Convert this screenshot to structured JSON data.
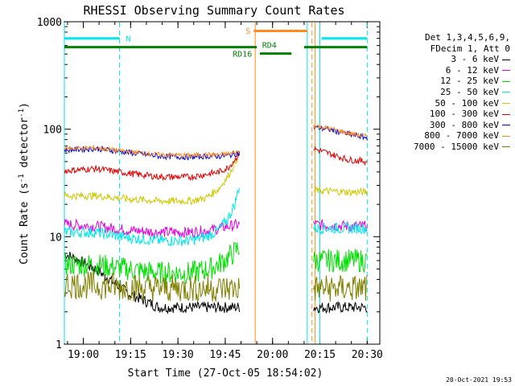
{
  "chart_data": {
    "type": "line",
    "title": "RHESSI Observing Summary Count Rates",
    "xlabel": "Start Time (27-Oct-05 18:54:02)",
    "ylabel": "Count Rate (s",
    "ylabel_sup": "-1",
    "ylabel_mid": " detector",
    "ylabel_sup2": "-1",
    "ylabel_end": ")",
    "x_unit": "minutes since 18:54:02",
    "xlim": [
      0,
      100
    ],
    "ylim": [
      1,
      1000
    ],
    "y_scale": "log",
    "x_ticks": [
      {
        "label": "19:00",
        "x": 6
      },
      {
        "label": "19:15",
        "x": 21
      },
      {
        "label": "19:30",
        "x": 36
      },
      {
        "label": "19:45",
        "x": 51
      },
      {
        "label": "20:00",
        "x": 66
      },
      {
        "label": "20:15",
        "x": 81
      },
      {
        "label": "20:30",
        "x": 96
      }
    ],
    "y_ticks": [
      {
        "label": "1",
        "y": 1
      },
      {
        "label": "10",
        "y": 10
      },
      {
        "label": "100",
        "y": 100
      },
      {
        "label": "1000",
        "y": 1000
      }
    ],
    "legend_header": [
      "Det 1,3,4,5,6,9,",
      "FDecim 1, Att 0"
    ],
    "legend_placement": "right",
    "series": [
      {
        "name": "3 - 6 keV",
        "color": "#000000",
        "values": [
          [
            0,
            7
          ],
          [
            10,
            5
          ],
          [
            20,
            3
          ],
          [
            30,
            2.2
          ],
          [
            40,
            2.2
          ],
          [
            49,
            2.2
          ],
          [
            55.5,
            2.2
          ],
          [
            79,
            2.2
          ],
          [
            90,
            2.2
          ],
          [
            96,
            2.2
          ]
        ]
      },
      {
        "name": "6 - 12 keV",
        "color": "#e000e0",
        "values": [
          [
            0,
            13
          ],
          [
            10,
            12.5
          ],
          [
            20,
            11.5
          ],
          [
            30,
            11
          ],
          [
            40,
            11
          ],
          [
            46,
            11.5
          ],
          [
            52,
            12.5
          ],
          [
            55.5,
            13
          ],
          [
            79,
            13
          ],
          [
            90,
            12.5
          ],
          [
            96,
            12.5
          ]
        ]
      },
      {
        "name": "12 - 25 keV",
        "color": "#00e000",
        "values": [
          [
            0,
            5.5
          ],
          [
            10,
            5.5
          ],
          [
            20,
            5
          ],
          [
            30,
            4.6
          ],
          [
            40,
            4.6
          ],
          [
            46,
            5
          ],
          [
            50,
            5.8
          ],
          [
            53,
            6.8
          ],
          [
            55.5,
            8
          ],
          [
            79,
            6
          ],
          [
            90,
            6
          ],
          [
            96,
            6
          ]
        ]
      },
      {
        "name": "25 - 50 keV",
        "color": "#00e8e8",
        "values": [
          [
            0,
            11
          ],
          [
            10,
            11
          ],
          [
            20,
            9.8
          ],
          [
            30,
            9.2
          ],
          [
            40,
            9.2
          ],
          [
            45,
            10
          ],
          [
            49,
            11.5
          ],
          [
            52,
            15
          ],
          [
            54,
            20
          ],
          [
            55.5,
            30
          ],
          [
            79,
            12
          ],
          [
            90,
            12
          ],
          [
            96,
            12
          ]
        ]
      },
      {
        "name": "50 - 100 keV",
        "color": "#d0c800",
        "values": [
          [
            0,
            24
          ],
          [
            10,
            24
          ],
          [
            20,
            22.5
          ],
          [
            30,
            21.5
          ],
          [
            40,
            21.5
          ],
          [
            45,
            23
          ],
          [
            49,
            28
          ],
          [
            52,
            37
          ],
          [
            54,
            48
          ],
          [
            55.5,
            60
          ],
          [
            79,
            27
          ],
          [
            90,
            26
          ],
          [
            96,
            26
          ]
        ]
      },
      {
        "name": "100 - 300 keV",
        "color": "#e00000",
        "values": [
          [
            0,
            41
          ],
          [
            10,
            43
          ],
          [
            20,
            39
          ],
          [
            30,
            36
          ],
          [
            40,
            36
          ],
          [
            45,
            38
          ],
          [
            49,
            40
          ],
          [
            52,
            44
          ],
          [
            54,
            52
          ],
          [
            55.5,
            60
          ],
          [
            79,
            66
          ],
          [
            85,
            58
          ],
          [
            90,
            52
          ],
          [
            96,
            50
          ]
        ]
      },
      {
        "name": "300 - 800 keV",
        "color": "#0000e0",
        "values": [
          [
            0,
            64
          ],
          [
            10,
            66
          ],
          [
            20,
            61
          ],
          [
            30,
            56
          ],
          [
            40,
            55
          ],
          [
            45,
            56
          ],
          [
            49,
            56
          ],
          [
            52,
            57
          ],
          [
            55.5,
            60
          ],
          [
            79,
            105
          ],
          [
            85,
            98
          ],
          [
            90,
            90
          ],
          [
            96,
            83
          ]
        ]
      },
      {
        "name": "800 - 7000 keV",
        "color": "#ff8c1a",
        "values": [
          [
            0,
            66
          ],
          [
            10,
            67
          ],
          [
            20,
            62
          ],
          [
            30,
            58
          ],
          [
            40,
            57
          ],
          [
            45,
            58
          ],
          [
            49,
            58
          ],
          [
            52,
            59
          ],
          [
            55.5,
            62
          ],
          [
            79,
            108
          ],
          [
            85,
            100
          ],
          [
            90,
            92
          ],
          [
            96,
            85
          ]
        ]
      },
      {
        "name": "7000 - 15000 keV",
        "color": "#808000",
        "values": [
          [
            0,
            3.6
          ],
          [
            10,
            3.5
          ],
          [
            20,
            3.4
          ],
          [
            30,
            3.3
          ],
          [
            40,
            3.3
          ],
          [
            49,
            3.3
          ],
          [
            55.5,
            3.3
          ],
          [
            79,
            3.3
          ],
          [
            90,
            3.3
          ],
          [
            96,
            3.3
          ]
        ]
      }
    ],
    "flag_bars": [
      {
        "label": "N",
        "color": "#00e8e8",
        "y": 700,
        "segments": [
          [
            0,
            17.5
          ],
          [
            81.5,
            96
          ]
        ]
      },
      {
        "label": "S",
        "color": "#ff8c1a",
        "y": 820,
        "segments": [
          [
            60,
            77
          ]
        ]
      },
      {
        "label": "",
        "color": "#008000",
        "y": 580,
        "segments": [
          [
            0,
            61
          ],
          [
            76,
            96
          ]
        ]
      },
      {
        "label": "RD4",
        "color": "#008000",
        "y": 505,
        "segments": [
          [
            62,
            72
          ]
        ]
      },
      {
        "label": "RD16",
        "color": "#008000",
        "y": 535,
        "segments": [
          [
            0,
            0
          ]
        ]
      }
    ],
    "vertical_markers": [
      {
        "x": 0,
        "color": "#00e8e8",
        "style": "solid"
      },
      {
        "x": 17.5,
        "color": "#00e8e8",
        "style": "dashed"
      },
      {
        "x": 60.5,
        "color": "#ff8c1a",
        "style": "solid"
      },
      {
        "x": 77,
        "color": "#00e8e8",
        "style": "solid"
      },
      {
        "x": 78.5,
        "color": "#ff8c1a",
        "style": "dashed"
      },
      {
        "x": 79.5,
        "color": "#ff8c1a",
        "style": "solid"
      },
      {
        "x": 81,
        "color": "#00e8e8",
        "style": "solid"
      },
      {
        "x": 96,
        "color": "#00e8e8",
        "style": "dashed"
      }
    ],
    "gap": [
      55.5,
      79
    ],
    "timestamp": "20-Oct-2021 19:53"
  }
}
